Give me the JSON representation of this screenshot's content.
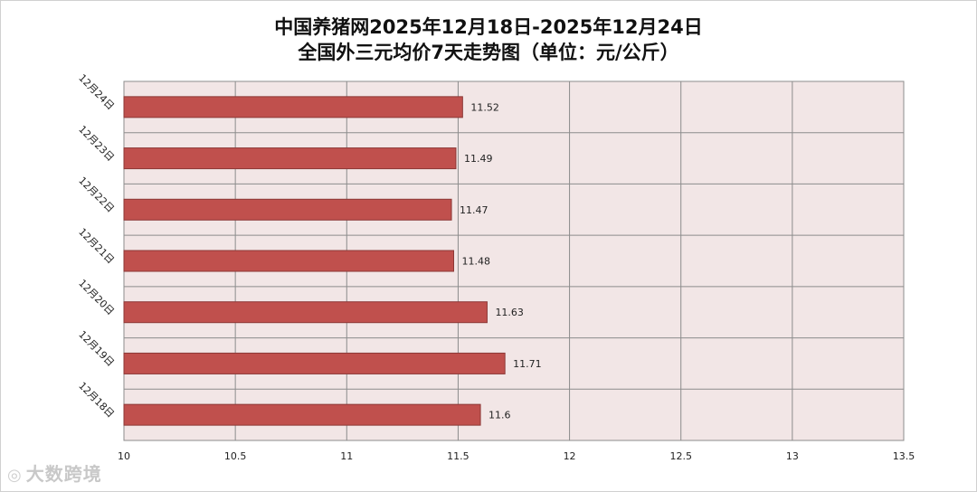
{
  "chart_data": {
    "type": "bar",
    "orientation": "horizontal",
    "title": "中国养猪网2025年12月18日-2025年12月24日",
    "subtitle": "全国外三元均价7天走势图（单位：元/公斤）",
    "categories": [
      "12月24日",
      "12月23日",
      "12月22日",
      "12月21日",
      "12月20日",
      "12月19日",
      "12月18日"
    ],
    "values": [
      11.52,
      11.49,
      11.47,
      11.48,
      11.63,
      11.71,
      11.6
    ],
    "data_labels": [
      "11.52",
      "11.49",
      "11.47",
      "11.48",
      "11.63",
      "11.71",
      "11.6"
    ],
    "xlim": [
      10,
      13.5
    ],
    "xticks": [
      10,
      10.5,
      11,
      11.5,
      12,
      12.5,
      13,
      13.5
    ],
    "xtick_labels": [
      "10",
      "10.5",
      "11",
      "11.5",
      "12",
      "12.5",
      "13",
      "13.5"
    ],
    "grid": true,
    "colors": {
      "bar_fill": "#c0504d",
      "bar_stroke": "#8c3836",
      "plot_background": "#f2e6e6",
      "grid": "#8c8c8c"
    }
  },
  "watermark": {
    "icon": "brand-logo-icon",
    "text": "大数跨境"
  }
}
